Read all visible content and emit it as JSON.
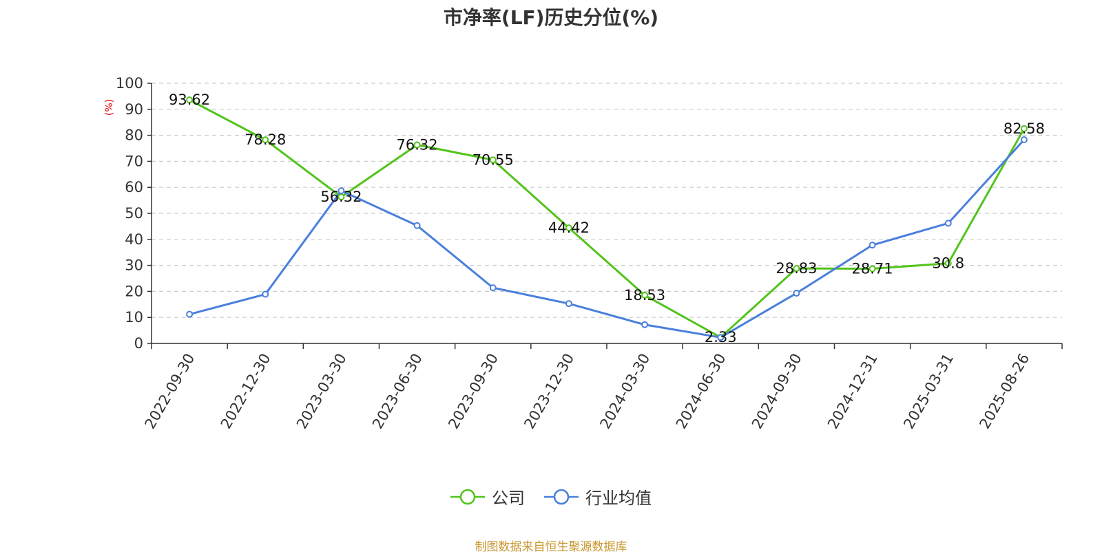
{
  "chart_data": {
    "type": "line",
    "title": "市净率(LF)历史分位(%)",
    "ylabel": "(%)",
    "xlabel": "",
    "ylim": [
      0,
      100
    ],
    "yticks": [
      0,
      10,
      20,
      30,
      40,
      50,
      60,
      70,
      80,
      90,
      100
    ],
    "grid": true,
    "legend_position": "bottom",
    "categories": [
      "2022-09-30",
      "2022-12-30",
      "2023-03-30",
      "2023-06-30",
      "2023-09-30",
      "2023-12-30",
      "2024-03-30",
      "2024-06-30",
      "2024-09-30",
      "2024-12-31",
      "2025-03-31",
      "2025-08-26"
    ],
    "series": [
      {
        "name": "公司",
        "color": "#52c41a",
        "values": [
          93.62,
          78.28,
          56.32,
          76.32,
          70.55,
          44.42,
          18.53,
          2.33,
          28.83,
          28.71,
          30.8,
          82.58
        ],
        "labels": [
          "93.62",
          "78.28",
          "56.32",
          "76.32",
          "70.55",
          "44.42",
          "18.53",
          "2.33",
          "28.83",
          "28.71",
          "30.8",
          "82.58"
        ]
      },
      {
        "name": "行业均值",
        "color": "#4a7fdc",
        "values": [
          11.2,
          18.9,
          58.7,
          45.3,
          21.4,
          15.3,
          7.2,
          2.3,
          19.3,
          37.8,
          46.2,
          78.3
        ]
      }
    ]
  },
  "source_note": "制图数据来自恒生聚源数据库",
  "colors": {
    "source_note": "#c8962e",
    "ylabel": "#e00000",
    "axis": "#333333",
    "grid": "#cccccc"
  }
}
